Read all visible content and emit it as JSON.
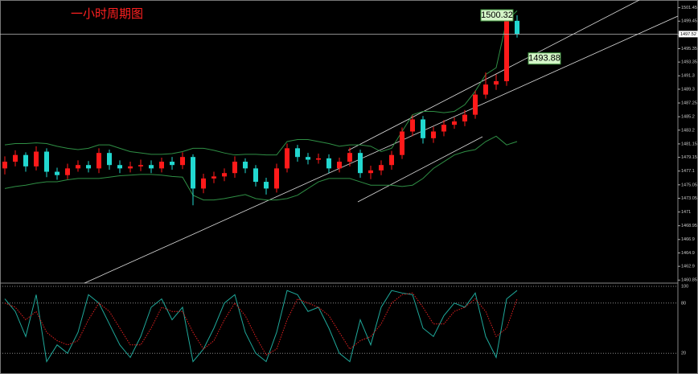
{
  "chart_data": [
    {
      "type": "candlestick",
      "title": "一小时周期图",
      "open": [
        1477.5,
        1478.5,
        1479.5,
        1477.8,
        1480.0,
        1477.0,
        1476.5,
        1477.5,
        1478.0,
        1477.5,
        1479.8,
        1478.0,
        1477.5,
        1477.8,
        1478.0,
        1477.5,
        1478.5,
        1478.0,
        1479.2,
        1474.5,
        1476.0,
        1476.3,
        1476.8,
        1478.5,
        1477.5,
        1475.5,
        1474.5,
        1477.5,
        1480.5,
        1479.2,
        1478.8,
        1479.0,
        1477.5,
        1478.5,
        1479.8,
        1476.8,
        1477.2,
        1478.0,
        1479.5,
        1483.0,
        1484.8,
        1482.0,
        1483.0,
        1484.0,
        1484.5,
        1485.5,
        1488.5,
        1490.0,
        1490.5,
        1499.5
      ],
      "high": [
        1479.3,
        1480.2,
        1479.9,
        1480.8,
        1480.5,
        1477.6,
        1478.2,
        1478.7,
        1478.6,
        1480.5,
        1480.3,
        1478.7,
        1478.5,
        1478.8,
        1478.7,
        1479.1,
        1479.2,
        1479.9,
        1479.6,
        1476.7,
        1477.0,
        1477.5,
        1479.3,
        1479.0,
        1478.0,
        1476.1,
        1478.2,
        1481.2,
        1481.0,
        1479.8,
        1479.7,
        1479.6,
        1479.1,
        1480.6,
        1480.3,
        1477.9,
        1478.7,
        1480.1,
        1483.6,
        1485.4,
        1485.3,
        1483.7,
        1484.7,
        1485.1,
        1486.2,
        1489.1,
        1491.8,
        1491.5,
        1500.0,
        1500.32
      ],
      "low": [
        1476.6,
        1477.8,
        1477.0,
        1477.2,
        1476.2,
        1475.8,
        1475.9,
        1477.0,
        1476.9,
        1476.8,
        1477.3,
        1476.8,
        1476.9,
        1477.1,
        1476.8,
        1476.9,
        1477.3,
        1477.4,
        1472.0,
        1473.8,
        1475.3,
        1475.6,
        1476.1,
        1476.8,
        1474.8,
        1473.6,
        1473.9,
        1476.9,
        1478.5,
        1478.1,
        1478.2,
        1476.8,
        1476.9,
        1477.8,
        1476.1,
        1475.9,
        1476.5,
        1477.3,
        1478.9,
        1482.3,
        1481.2,
        1481.3,
        1482.3,
        1483.4,
        1483.8,
        1484.9,
        1487.9,
        1489.2,
        1489.8,
        1497.0
      ],
      "close": [
        1478.5,
        1479.5,
        1477.8,
        1480.0,
        1477.0,
        1476.5,
        1477.5,
        1478.0,
        1477.5,
        1479.8,
        1478.0,
        1477.5,
        1477.8,
        1478.0,
        1477.5,
        1478.5,
        1478.0,
        1479.2,
        1474.5,
        1476.0,
        1476.3,
        1476.8,
        1478.5,
        1477.5,
        1475.5,
        1474.5,
        1477.5,
        1480.5,
        1479.2,
        1478.8,
        1479.0,
        1477.5,
        1478.5,
        1479.8,
        1476.8,
        1477.2,
        1478.0,
        1479.5,
        1483.0,
        1484.8,
        1482.0,
        1483.0,
        1484.0,
        1484.5,
        1485.5,
        1488.5,
        1490.0,
        1490.5,
        1499.5,
        1497.5
      ],
      "up_color": "#ff1a1a",
      "down_color": "#22d8d0",
      "bands": [
        {
          "color": "#2f8f45",
          "values": [
            1481.0,
            1481.2,
            1481.2,
            1481.3,
            1481.2,
            1480.8,
            1480.5,
            1480.3,
            1480.5,
            1481.0,
            1481.0,
            1480.5,
            1480.0,
            1479.8,
            1479.6,
            1479.6,
            1479.7,
            1480.0,
            1480.5,
            1480.5,
            1480.2,
            1479.8,
            1479.5,
            1479.6,
            1479.6,
            1479.5,
            1479.5,
            1481.5,
            1481.8,
            1481.8,
            1481.5,
            1481.2,
            1480.8,
            1481.0,
            1481.0,
            1480.8,
            1480.0,
            1480.5,
            1483.0,
            1485.5,
            1486.0,
            1486.0,
            1485.8,
            1486.0,
            1487.0,
            1489.0,
            1491.5,
            1492.5,
            1499.5,
            1501.0
          ]
        },
        {
          "color": "#2f8f45",
          "values": [
            1474.5,
            1474.8,
            1475.0,
            1475.3,
            1475.5,
            1475.5,
            1475.8,
            1476.0,
            1476.0,
            1476.0,
            1476.2,
            1476.4,
            1476.5,
            1476.6,
            1476.6,
            1476.5,
            1476.3,
            1476.2,
            1473.5,
            1472.8,
            1472.8,
            1473.0,
            1473.3,
            1473.6,
            1473.0,
            1472.8,
            1472.8,
            1473.0,
            1473.5,
            1474.5,
            1475.5,
            1476.0,
            1476.0,
            1476.0,
            1475.5,
            1475.0,
            1475.0,
            1475.0,
            1474.8,
            1475.0,
            1476.0,
            1477.5,
            1478.5,
            1479.5,
            1480.0,
            1480.3,
            1481.5,
            1482.3,
            1481.0,
            1481.5
          ]
        }
      ],
      "ylim": [
        1460.4,
        1502.6
      ],
      "yticks": [
        1501.45,
        1499.45,
        1497.4,
        1495.35,
        1493.35,
        1491.3,
        1489.3,
        1487.25,
        1485.2,
        1483.2,
        1481.15,
        1479.15,
        1477.1,
        1475.05,
        1473.05,
        1471.0,
        1468.95,
        1466.9,
        1464.9,
        1462.9,
        1460.85
      ],
      "price_line": 1497.52,
      "price_labels": [
        1500.32,
        1493.88
      ]
    },
    {
      "type": "line",
      "series": [
        {
          "color": "#1fa89a",
          "style": "solid",
          "values": [
            85,
            70,
            40,
            90,
            10,
            30,
            20,
            45,
            90,
            80,
            55,
            30,
            15,
            40,
            75,
            85,
            60,
            75,
            10,
            25,
            50,
            80,
            90,
            45,
            20,
            10,
            45,
            95,
            90,
            70,
            75,
            50,
            20,
            10,
            60,
            30,
            75,
            95,
            92,
            90,
            50,
            40,
            65,
            80,
            75,
            92,
            40,
            15,
            85,
            95
          ]
        },
        {
          "color": "#e02020",
          "style": "dotted",
          "values": [
            80,
            75,
            60,
            70,
            45,
            35,
            30,
            35,
            60,
            80,
            70,
            50,
            30,
            30,
            50,
            75,
            70,
            70,
            45,
            25,
            35,
            60,
            80,
            65,
            40,
            18,
            25,
            60,
            85,
            80,
            75,
            65,
            45,
            25,
            35,
            40,
            55,
            80,
            90,
            92,
            75,
            55,
            55,
            70,
            75,
            85,
            70,
            40,
            50,
            85
          ]
        }
      ],
      "ylim": [
        0,
        100
      ],
      "yticks": [
        100,
        80,
        20
      ]
    }
  ]
}
